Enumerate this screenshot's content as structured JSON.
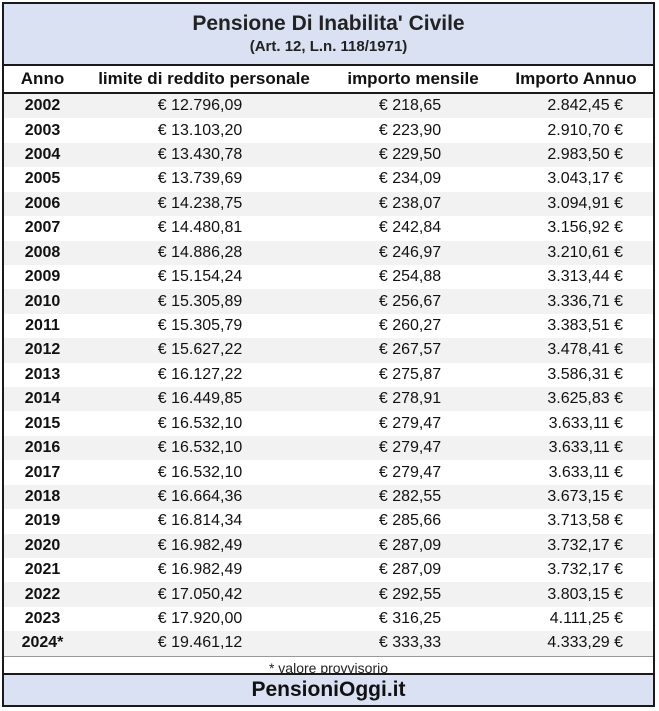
{
  "header": {
    "title": "Pensione Di Inabilita' Civile",
    "subtitle": "(Art. 12, L.n. 118/1971)"
  },
  "table": {
    "columns": [
      "Anno",
      "limite di reddito personale",
      "importo mensile",
      "Importo Annuo"
    ],
    "rows": [
      [
        "2002",
        "€ 12.796,09",
        "€ 218,65",
        "2.842,45 €"
      ],
      [
        "2003",
        "€ 13.103,20",
        "€ 223,90",
        "2.910,70 €"
      ],
      [
        "2004",
        "€ 13.430,78",
        "€ 229,50",
        "2.983,50 €"
      ],
      [
        "2005",
        "€ 13.739,69",
        "€ 234,09",
        "3.043,17 €"
      ],
      [
        "2006",
        "€ 14.238,75",
        "€ 238,07",
        "3.094,91 €"
      ],
      [
        "2007",
        "€ 14.480,81",
        "€ 242,84",
        "3.156,92 €"
      ],
      [
        "2008",
        "€ 14.886,28",
        "€ 246,97",
        "3.210,61 €"
      ],
      [
        "2009",
        "€ 15.154,24",
        "€ 254,88",
        "3.313,44 €"
      ],
      [
        "2010",
        "€ 15.305,89",
        "€ 256,67",
        "3.336,71 €"
      ],
      [
        "2011",
        "€ 15.305,79",
        "€ 260,27",
        "3.383,51 €"
      ],
      [
        "2012",
        "€ 15.627,22",
        "€ 267,57",
        "3.478,41 €"
      ],
      [
        "2013",
        "€ 16.127,22",
        "€ 275,87",
        "3.586,31 €"
      ],
      [
        "2014",
        "€ 16.449,85",
        "€ 278,91",
        "3.625,83 €"
      ],
      [
        "2015",
        "€ 16.532,10",
        "€ 279,47",
        "3.633,11 €"
      ],
      [
        "2016",
        "€ 16.532,10",
        "€ 279,47",
        "3.633,11 €"
      ],
      [
        "2017",
        "€ 16.532,10",
        "€ 279,47",
        "3.633,11 €"
      ],
      [
        "2018",
        "€ 16.664,36",
        "€ 282,55",
        "3.673,15 €"
      ],
      [
        "2019",
        "€ 16.814,34",
        "€ 285,66",
        "3.713,58 €"
      ],
      [
        "2020",
        "€ 16.982,49",
        "€ 287,09",
        "3.732,17 €"
      ],
      [
        "2021",
        "€ 16.982,49",
        "€ 287,09",
        "3.732,17 €"
      ],
      [
        "2022",
        "€ 17.050,42",
        "€ 292,55",
        "3.803,15 €"
      ],
      [
        "2023",
        "€ 17.920,00",
        "€ 316,25",
        "4.111,25 €"
      ],
      [
        "2024*",
        "€ 19.461,12",
        "€ 333,33",
        "4.333,29 €"
      ]
    ]
  },
  "note": "* valore provvisorio",
  "footer": {
    "brand": "PensioniOggi.it"
  },
  "colors": {
    "header_bg": "#d9e1f2",
    "stripe": "#f2f2f2",
    "border": "#1a1a1a"
  }
}
